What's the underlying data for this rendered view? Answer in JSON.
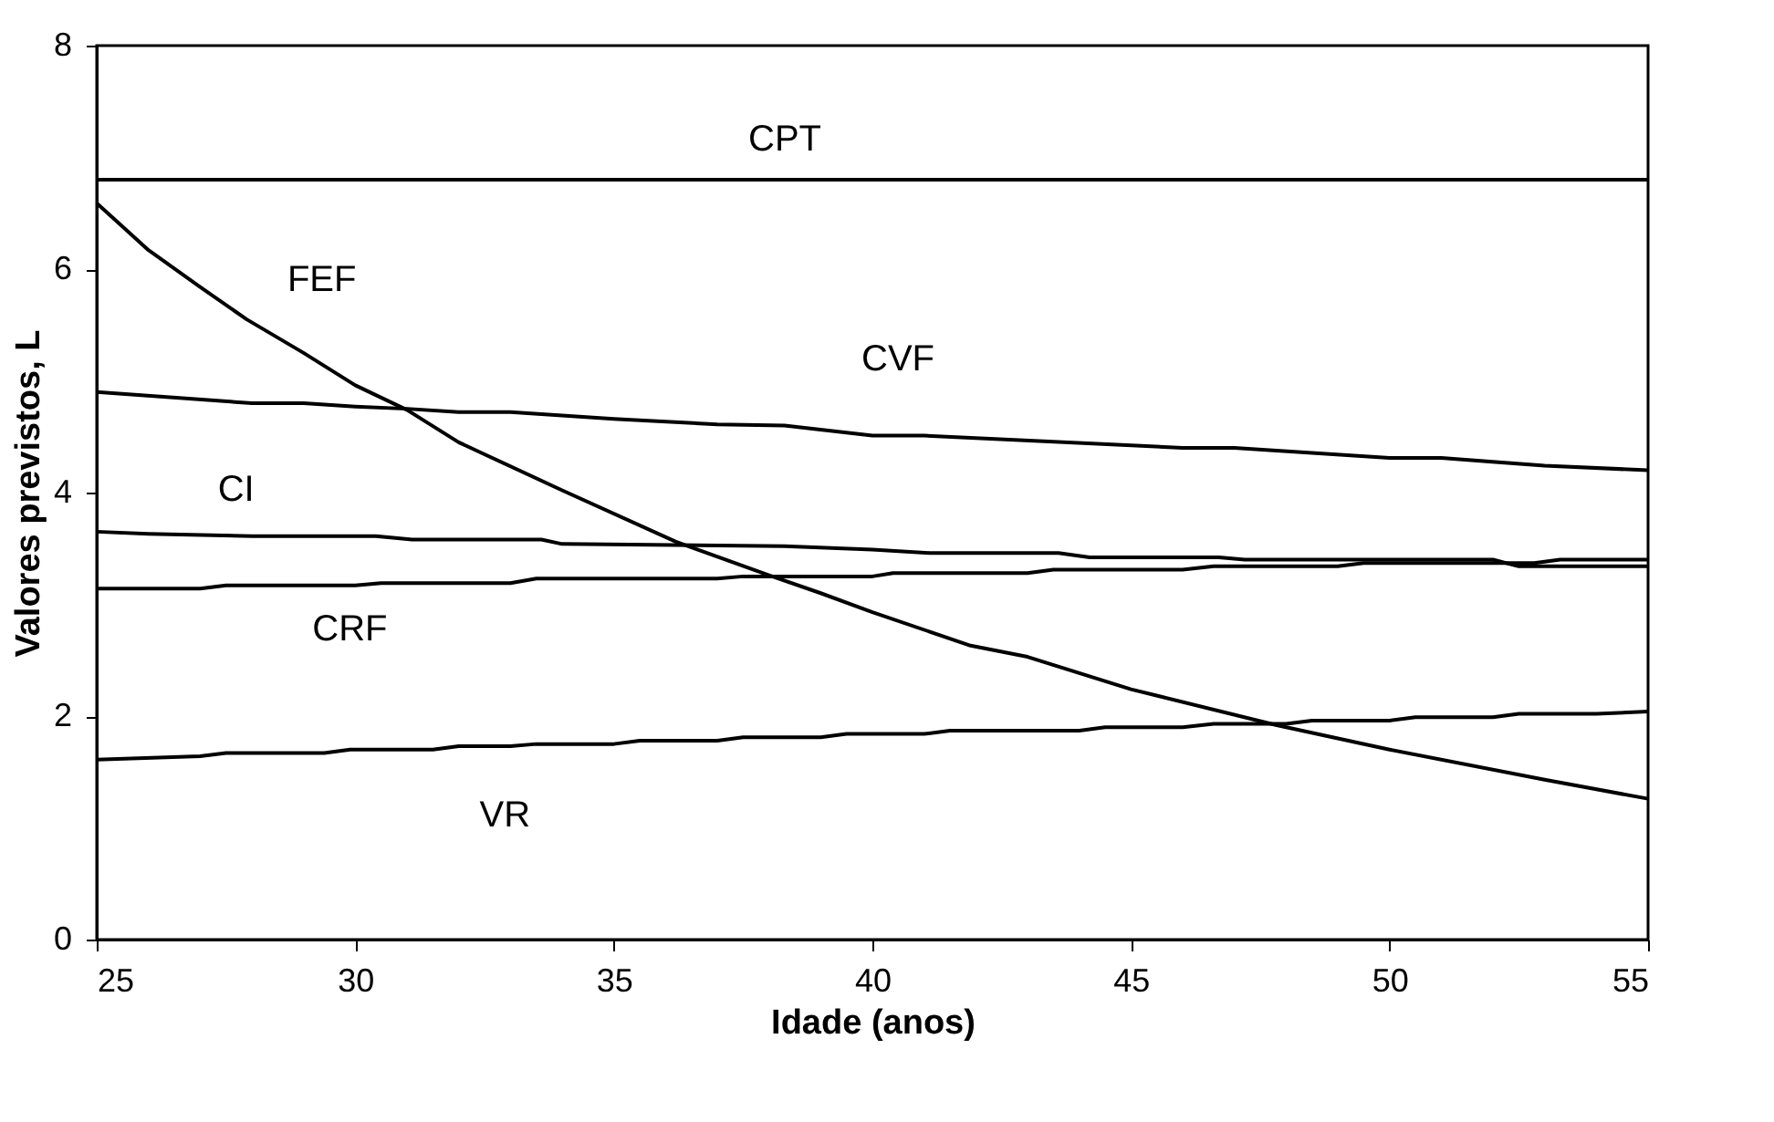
{
  "chart_data": {
    "type": "line",
    "xlabel": "Idade (anos)",
    "ylabel": "Valores previstos, L",
    "xlim": [
      25,
      55
    ],
    "xticks": [
      25,
      30,
      35,
      40,
      45,
      50,
      55
    ],
    "ylim": [
      0,
      8
    ],
    "yticks": [
      0,
      2,
      4,
      6,
      8
    ],
    "marker": "none",
    "line_style": "solid",
    "series": [
      {
        "name": "CPT",
        "color": "#000000",
        "x": [
          25,
          55
        ],
        "values": [
          6.8,
          6.8
        ]
      },
      {
        "name": "FEF",
        "color": "#000000",
        "x": [
          25,
          26,
          27,
          27.9,
          29,
          30,
          31,
          32,
          34,
          36.2,
          38,
          39,
          40,
          41.9,
          43,
          45,
          47.8,
          50,
          53,
          55
        ],
        "values": [
          6.59,
          6.17,
          5.84,
          5.55,
          5.25,
          4.96,
          4.74,
          4.45,
          4.02,
          3.56,
          3.26,
          3.1,
          2.93,
          2.63,
          2.53,
          2.24,
          1.92,
          1.7,
          1.43,
          1.26
        ]
      },
      {
        "name": "CVF",
        "color": "#000000",
        "x": [
          25,
          28,
          29,
          30,
          31,
          32,
          33,
          35,
          37,
          38.3,
          40,
          41,
          46,
          47,
          50,
          51,
          53,
          55
        ],
        "values": [
          4.9,
          4.8,
          4.8,
          4.77,
          4.75,
          4.72,
          4.72,
          4.66,
          4.61,
          4.6,
          4.51,
          4.51,
          4.4,
          4.4,
          4.31,
          4.31,
          4.24,
          4.2
        ]
      },
      {
        "name": "CI",
        "color": "#000000",
        "x": [
          25,
          26,
          28,
          30.4,
          31.1,
          33.6,
          34,
          38.3,
          40,
          41.1,
          43.6,
          44.2,
          46.7,
          47.2,
          52,
          52.5,
          55
        ],
        "values": [
          3.65,
          3.63,
          3.61,
          3.61,
          3.58,
          3.58,
          3.54,
          3.52,
          3.49,
          3.46,
          3.46,
          3.42,
          3.42,
          3.4,
          3.4,
          3.34,
          3.34
        ]
      },
      {
        "name": "CRF",
        "color": "#000000",
        "x": [
          25,
          27,
          27.5,
          30,
          30.5,
          33,
          33.5,
          37,
          37.5,
          40,
          40.4,
          43,
          43.5,
          46,
          46.6,
          49,
          49.5,
          52.8,
          53.3,
          55
        ],
        "values": [
          3.14,
          3.14,
          3.17,
          3.17,
          3.19,
          3.19,
          3.23,
          3.23,
          3.25,
          3.25,
          3.28,
          3.28,
          3.31,
          3.31,
          3.34,
          3.34,
          3.37,
          3.37,
          3.4,
          3.4
        ]
      },
      {
        "name": "VR",
        "color": "#000000",
        "x": [
          25,
          27,
          27.5,
          29.4,
          29.9,
          31.5,
          32,
          33,
          33.5,
          35,
          35.5,
          37,
          37.5,
          39,
          39.5,
          41,
          41.5,
          44,
          44.5,
          46,
          46.6,
          48,
          48.5,
          50,
          50.5,
          52,
          52.5,
          54,
          55
        ],
        "values": [
          1.61,
          1.64,
          1.67,
          1.67,
          1.7,
          1.7,
          1.73,
          1.73,
          1.75,
          1.75,
          1.78,
          1.78,
          1.81,
          1.81,
          1.84,
          1.84,
          1.87,
          1.87,
          1.9,
          1.9,
          1.93,
          1.93,
          1.96,
          1.96,
          1.99,
          1.99,
          2.02,
          2.02,
          2.04
        ]
      }
    ]
  }
}
